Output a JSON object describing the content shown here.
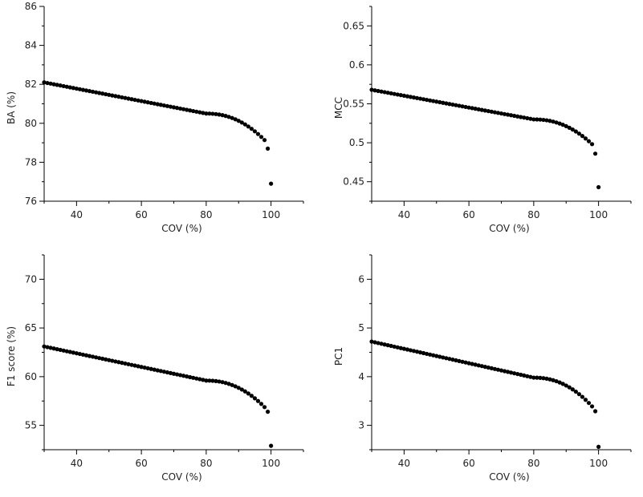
{
  "chart_data": [
    {
      "type": "scatter",
      "xlabel": "COV (%)",
      "ylabel": "BA (%)",
      "xlim": [
        30,
        110
      ],
      "ylim": [
        76,
        86
      ],
      "xticks": [
        40,
        60,
        80,
        100
      ],
      "yticks": [
        76,
        78,
        80,
        82,
        84,
        86
      ],
      "ytick_labels": [
        "76",
        "78",
        "80",
        "82",
        "84",
        "86"
      ],
      "curve": {
        "y_start": 82.1,
        "y_mid": 80.5,
        "y_end": 79.3
      },
      "tail": [
        {
          "x": 99,
          "y": 78.7
        },
        {
          "x": 100,
          "y": 76.9
        }
      ]
    },
    {
      "type": "scatter",
      "xlabel": "COV (%)",
      "ylabel": "MCC",
      "xlim": [
        30,
        110
      ],
      "ylim": [
        0.425,
        0.675
      ],
      "xticks": [
        40,
        60,
        80,
        100
      ],
      "yticks": [
        0.45,
        0.5,
        0.55,
        0.6,
        0.65
      ],
      "ytick_labels": [
        "0.45",
        "0.5",
        "0.55",
        "0.6",
        "0.65"
      ],
      "curve": {
        "y_start": 0.568,
        "y_mid": 0.53,
        "y_end": 0.502
      },
      "tail": [
        {
          "x": 99,
          "y": 0.486
        },
        {
          "x": 100,
          "y": 0.443
        }
      ]
    },
    {
      "type": "scatter",
      "xlabel": "COV (%)",
      "ylabel": "F1 score (%)",
      "xlim": [
        30,
        110
      ],
      "ylim": [
        52.5,
        72.5
      ],
      "xticks": [
        40,
        60,
        80,
        100
      ],
      "yticks": [
        55,
        60,
        65,
        70
      ],
      "ytick_labels": [
        "55",
        "60",
        "65",
        "70"
      ],
      "curve": {
        "y_start": 63.1,
        "y_mid": 59.6,
        "y_end": 57.2
      },
      "tail": [
        {
          "x": 99,
          "y": 56.4
        },
        {
          "x": 100,
          "y": 52.9
        }
      ]
    },
    {
      "type": "scatter",
      "xlabel": "COV (%)",
      "ylabel": "PC1",
      "xlim": [
        30,
        110
      ],
      "ylim": [
        2.5,
        6.5
      ],
      "xticks": [
        40,
        60,
        80,
        100
      ],
      "yticks": [
        3,
        4,
        5,
        6
      ],
      "ytick_labels": [
        "3",
        "4",
        "5",
        "6"
      ],
      "curve": {
        "y_start": 4.72,
        "y_mid": 3.98,
        "y_end": 3.46
      },
      "tail": [
        {
          "x": 99,
          "y": 3.29
        },
        {
          "x": 100,
          "y": 2.56
        }
      ]
    }
  ]
}
